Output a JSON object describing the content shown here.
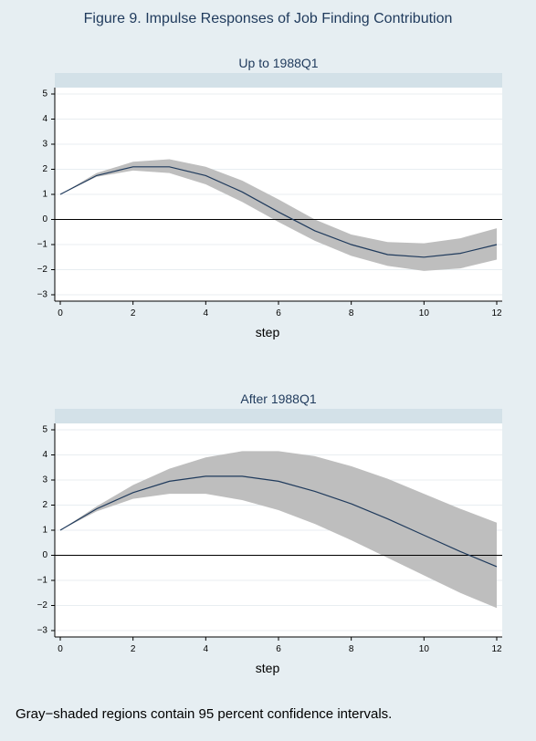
{
  "figure": {
    "title": "Figure 9.  Impulse Responses of Job Finding Contribution",
    "note": "Gray−shaded regions contain 95 percent confidence intervals."
  },
  "colors": {
    "background": "#e6eef2",
    "plot_area": "#ffffff",
    "title_strip": "#d3e1e8",
    "band": "#bebebe",
    "line": "#1f3a5c",
    "zero_line": "#000000"
  },
  "chart_data": [
    {
      "type": "line",
      "title": "Up to 1988Q1",
      "xlabel": "step",
      "ylabel": "",
      "xlim": [
        0,
        12
      ],
      "ylim": [
        -3,
        5
      ],
      "xticks": [
        "0",
        "2",
        "4",
        "6",
        "8",
        "10",
        "12"
      ],
      "yticks": [
        "−3",
        "−2",
        "−1",
        "0",
        "1",
        "2",
        "3",
        "4",
        "5"
      ],
      "grid": true,
      "x": [
        0,
        1,
        2,
        3,
        4,
        5,
        6,
        7,
        8,
        9,
        10,
        11,
        12
      ],
      "series": [
        {
          "values": [
            1.0,
            1.75,
            2.1,
            2.1,
            1.75,
            1.1,
            0.3,
            -0.45,
            -1.0,
            -1.4,
            -1.5,
            -1.35,
            -1.0
          ],
          "lower": [
            1.0,
            1.7,
            1.95,
            1.85,
            1.4,
            0.7,
            -0.1,
            -0.85,
            -1.45,
            -1.85,
            -2.05,
            -1.95,
            -1.6
          ],
          "upper": [
            1.0,
            1.85,
            2.3,
            2.4,
            2.1,
            1.55,
            0.8,
            0.0,
            -0.6,
            -0.9,
            -0.95,
            -0.75,
            -0.35
          ]
        }
      ]
    },
    {
      "type": "line",
      "title": "After 1988Q1",
      "xlabel": "step",
      "ylabel": "",
      "xlim": [
        0,
        12
      ],
      "ylim": [
        -3,
        5
      ],
      "xticks": [
        "0",
        "2",
        "4",
        "6",
        "8",
        "10",
        "12"
      ],
      "yticks": [
        "−3",
        "−2",
        "−1",
        "0",
        "1",
        "2",
        "3",
        "4",
        "5"
      ],
      "grid": true,
      "x": [
        0,
        1,
        2,
        3,
        4,
        5,
        6,
        7,
        8,
        9,
        10,
        11,
        12
      ],
      "series": [
        {
          "values": [
            1.0,
            1.85,
            2.5,
            2.95,
            3.15,
            3.15,
            2.95,
            2.55,
            2.05,
            1.45,
            0.8,
            0.15,
            -0.45
          ],
          "lower": [
            1.0,
            1.75,
            2.25,
            2.45,
            2.45,
            2.2,
            1.8,
            1.25,
            0.6,
            -0.1,
            -0.8,
            -1.5,
            -2.1
          ],
          "upper": [
            1.0,
            1.95,
            2.8,
            3.45,
            3.9,
            4.15,
            4.15,
            3.95,
            3.55,
            3.05,
            2.45,
            1.85,
            1.3
          ]
        }
      ]
    }
  ]
}
